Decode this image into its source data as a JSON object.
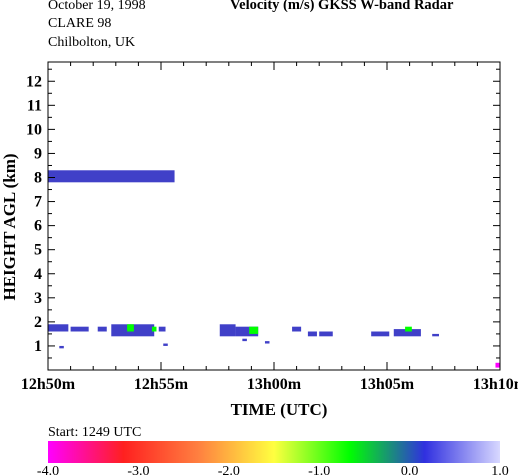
{
  "header": {
    "date": "October  19, 1998",
    "campaign": "CLARE 98",
    "site": "Chilbolton, UK",
    "title": "Velocity (m/s)    GKSS  W-band Radar"
  },
  "chart_data": {
    "type": "heatmap",
    "xlabel": "TIME (UTC)",
    "ylabel": "HEIGHT AGL (km)",
    "xlim_minutes_after_12h50": [
      0,
      20
    ],
    "ylim": [
      0,
      12.8
    ],
    "x_ticks": [
      "12h50m",
      "12h55m",
      "13h00m",
      "13h05m",
      "13h10m"
    ],
    "y_ticks": [
      1,
      2,
      3,
      4,
      5,
      6,
      7,
      8,
      9,
      10,
      11,
      12
    ],
    "colorbar": {
      "min": -4.0,
      "max": 1.0,
      "tick_labels": [
        "-4.0",
        "-3.0",
        "-2.0",
        "-1.0",
        "0.0",
        "1.0"
      ],
      "colors": [
        "#ff00ff",
        "#ff2020",
        "#ff8040",
        "#ffff40",
        "#00ff00",
        "#3030e0",
        "#d8d8ff"
      ]
    },
    "echoes": [
      {
        "t0": 0.0,
        "t1": 5.6,
        "h0": 7.8,
        "h1": 8.3,
        "velocity": 0.3,
        "note": "upper cloud layer"
      },
      {
        "t0": 0.0,
        "t1": 0.9,
        "h0": 1.6,
        "h1": 1.9,
        "velocity": 0.3
      },
      {
        "t0": 1.0,
        "t1": 1.8,
        "h0": 1.6,
        "h1": 1.8,
        "velocity": 0.3
      },
      {
        "t0": 2.2,
        "t1": 2.6,
        "h0": 1.6,
        "h1": 1.8,
        "velocity": 0.3
      },
      {
        "t0": 2.8,
        "t1": 4.7,
        "h0": 1.4,
        "h1": 1.9,
        "velocity": 0.3
      },
      {
        "t0": 3.5,
        "t1": 3.8,
        "h0": 1.6,
        "h1": 1.9,
        "velocity": -0.5
      },
      {
        "t0": 4.6,
        "t1": 4.8,
        "h0": 1.6,
        "h1": 1.8,
        "velocity": -0.8
      },
      {
        "t0": 4.9,
        "t1": 5.2,
        "h0": 1.6,
        "h1": 1.8,
        "velocity": 0.3
      },
      {
        "t0": 7.6,
        "t1": 8.3,
        "h0": 1.4,
        "h1": 1.9,
        "velocity": 0.3
      },
      {
        "t0": 8.3,
        "t1": 9.3,
        "h0": 1.4,
        "h1": 1.8,
        "velocity": 0.3
      },
      {
        "t0": 8.9,
        "t1": 9.3,
        "h0": 1.5,
        "h1": 1.8,
        "velocity": -0.8
      },
      {
        "t0": 9.6,
        "t1": 9.8,
        "h0": 1.1,
        "h1": 1.2,
        "velocity": 0.3
      },
      {
        "t0": 10.8,
        "t1": 11.2,
        "h0": 1.6,
        "h1": 1.8,
        "velocity": 0.3
      },
      {
        "t0": 11.5,
        "t1": 11.9,
        "h0": 1.4,
        "h1": 1.6,
        "velocity": 0.3
      },
      {
        "t0": 12.0,
        "t1": 12.6,
        "h0": 1.4,
        "h1": 1.6,
        "velocity": 0.3
      },
      {
        "t0": 14.3,
        "t1": 15.1,
        "h0": 1.4,
        "h1": 1.6,
        "velocity": 0.3
      },
      {
        "t0": 15.3,
        "t1": 16.5,
        "h0": 1.4,
        "h1": 1.7,
        "velocity": 0.3
      },
      {
        "t0": 15.8,
        "t1": 16.1,
        "h0": 1.6,
        "h1": 1.8,
        "velocity": -0.8
      },
      {
        "t0": 17.0,
        "t1": 17.3,
        "h0": 1.4,
        "h1": 1.5,
        "velocity": 0.3
      },
      {
        "t0": 5.1,
        "t1": 5.3,
        "h0": 1.0,
        "h1": 1.1,
        "velocity": 0.3
      },
      {
        "t0": 0.5,
        "t1": 0.7,
        "h0": 0.9,
        "h1": 1.0,
        "velocity": 0.3
      },
      {
        "t0": 8.6,
        "t1": 8.8,
        "h0": 1.2,
        "h1": 1.3,
        "velocity": 0.3
      },
      {
        "t0": 19.8,
        "t1": 20.0,
        "h0": 0.1,
        "h1": 0.3,
        "velocity": -4.0
      }
    ]
  },
  "footer": {
    "start_label": "Start:  1249 UTC"
  }
}
